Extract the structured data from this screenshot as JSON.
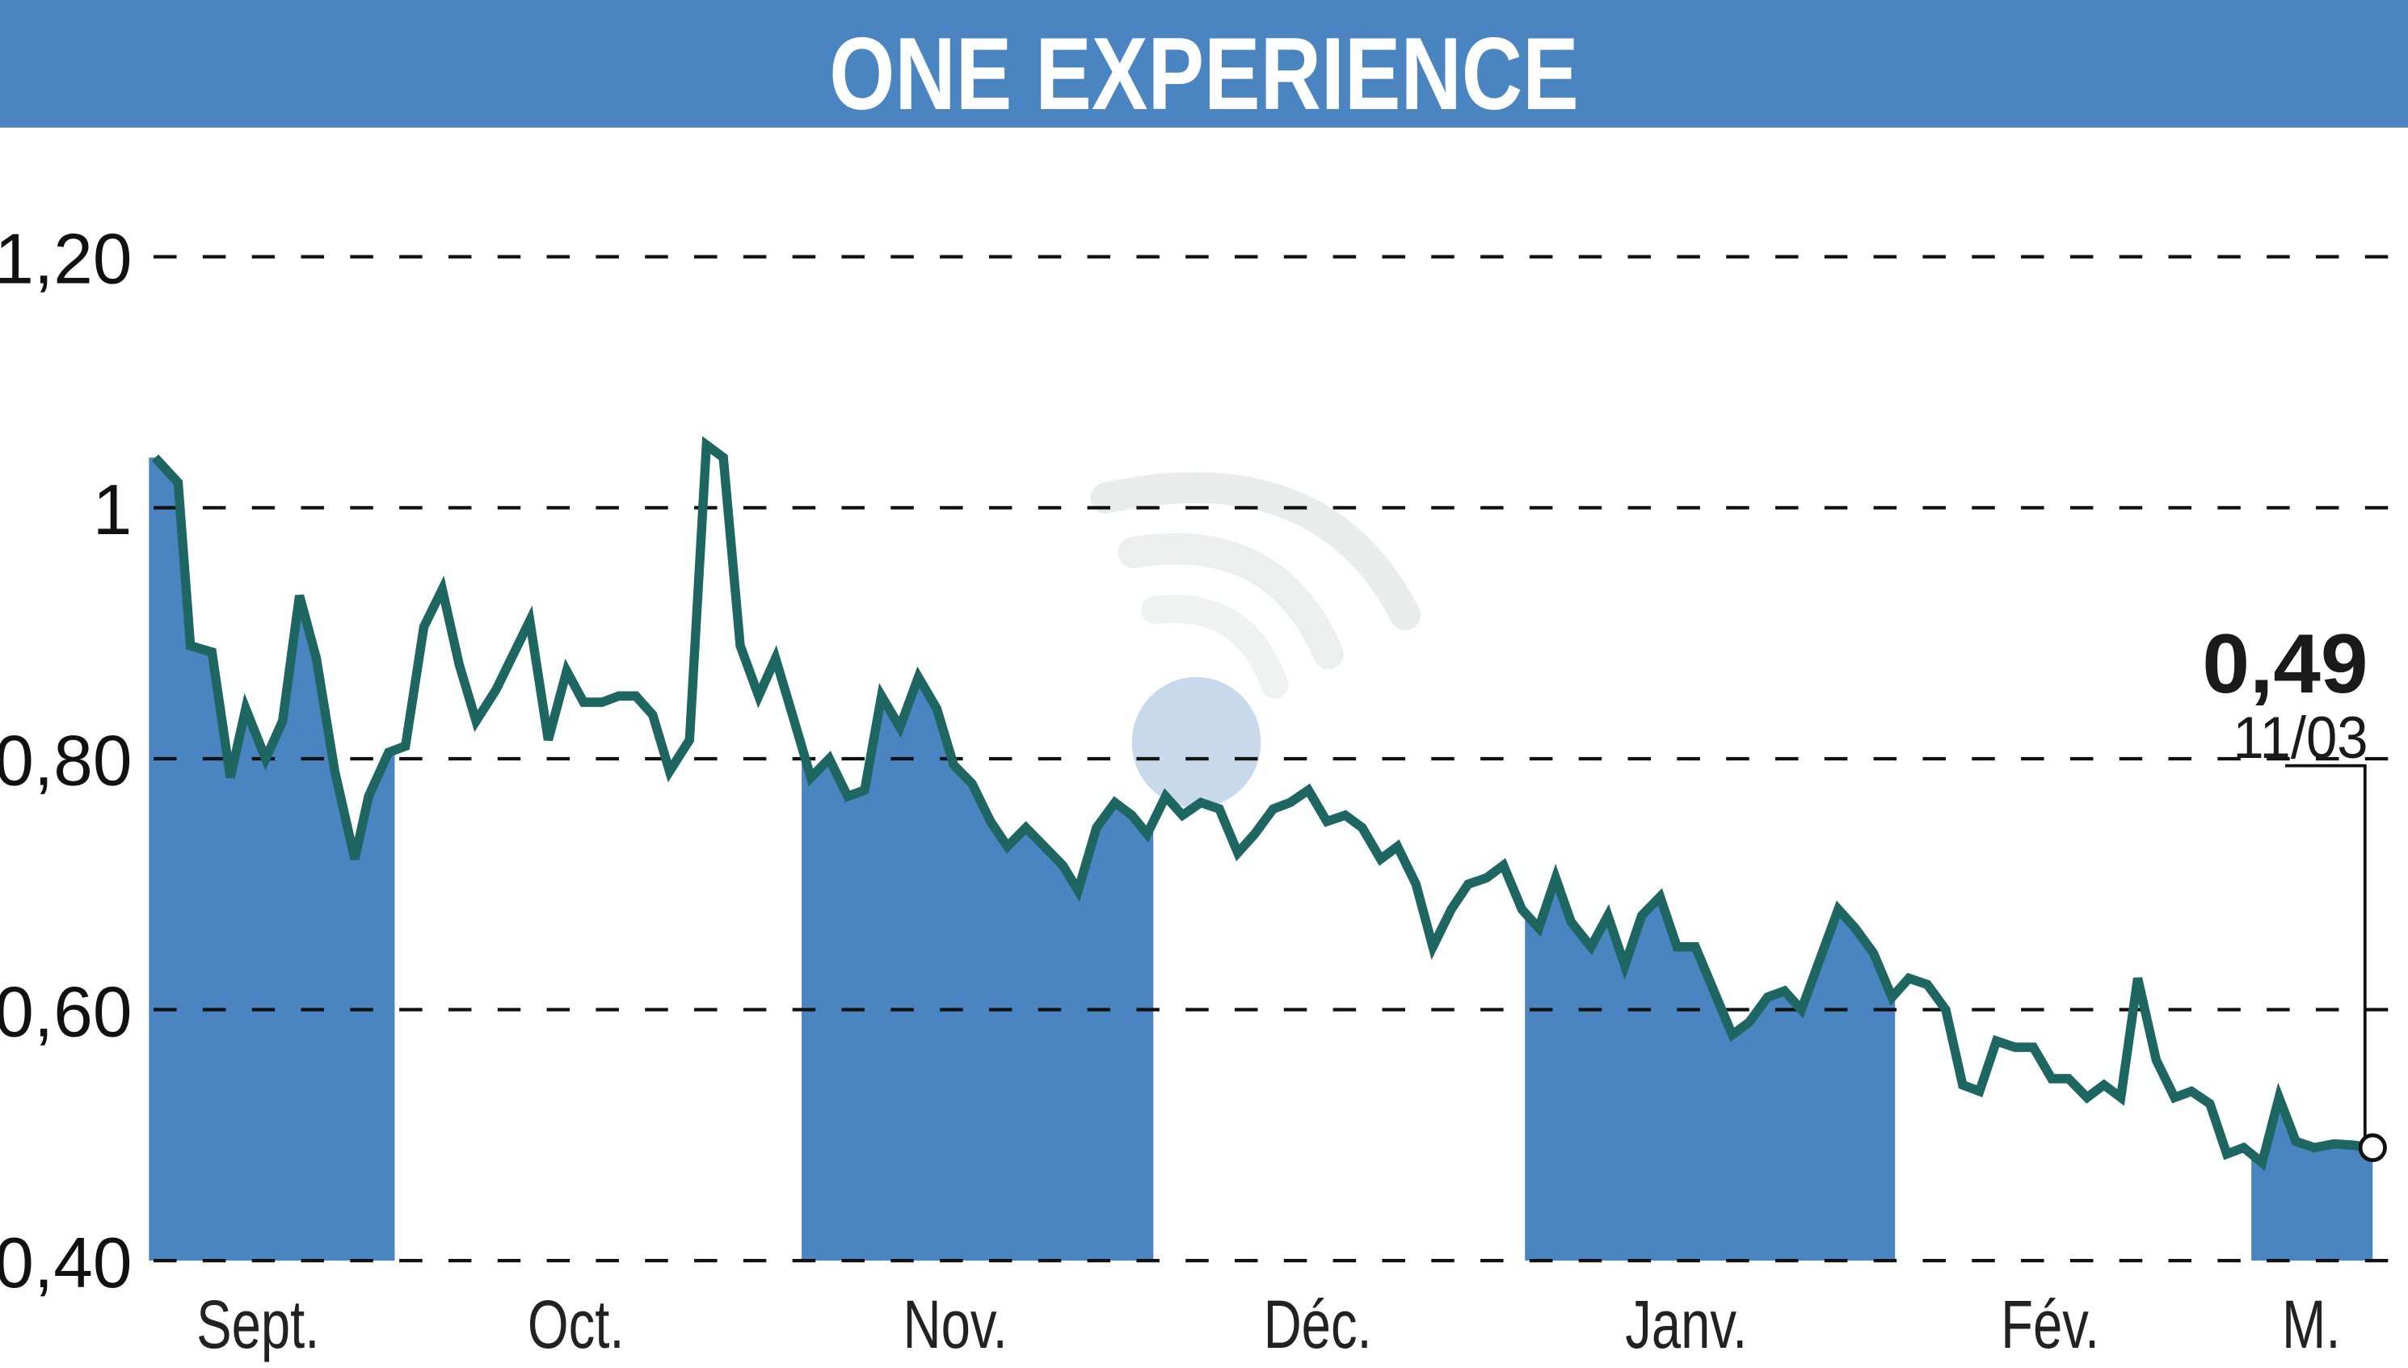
{
  "header": {
    "title": "ONE EXPERIENCE",
    "background_color": "#4a84c1",
    "text_color": "#ffffff"
  },
  "colors": {
    "band_fill": "#4a84c1",
    "line": "#1e6662",
    "grid": "#111111",
    "background": "#ffffff"
  },
  "last_point": {
    "value_label": "0,49",
    "date_label": "11/03"
  },
  "chart_data": {
    "type": "line",
    "title": "ONE EXPERIENCE",
    "xlabel": "",
    "ylabel": "",
    "ylim": [
      0.4,
      1.2
    ],
    "yticks": [
      {
        "value": 1.2,
        "label": "1,20"
      },
      {
        "value": 1.0,
        "label": "1"
      },
      {
        "value": 0.8,
        "label": "0,80"
      },
      {
        "value": 0.6,
        "label": "0,60"
      },
      {
        "value": 0.4,
        "label": "0,40"
      }
    ],
    "grid": "horizontal-dashed",
    "legend": "none",
    "xtick_labels": [
      "Sept.",
      "Oct.",
      "Nov.",
      "Déc.",
      "Janv.",
      "Fév.",
      "M."
    ],
    "shaded_months": [
      "Sept.",
      "Nov.",
      "Janv.",
      "M."
    ],
    "annotation": {
      "value": 0.49,
      "label": "0,49",
      "date": "11/03"
    },
    "series": [
      {
        "name": "ONE EXPERIENCE",
        "points": [
          {
            "x": 101,
            "y": 1.04
          },
          {
            "x": 116,
            "y": 1.02
          },
          {
            "x": 124,
            "y": 0.89
          },
          {
            "x": 138,
            "y": 0.885
          },
          {
            "x": 150,
            "y": 0.785
          },
          {
            "x": 160,
            "y": 0.84
          },
          {
            "x": 173,
            "y": 0.8
          },
          {
            "x": 184,
            "y": 0.83
          },
          {
            "x": 195,
            "y": 0.93
          },
          {
            "x": 206,
            "y": 0.88
          },
          {
            "x": 218,
            "y": 0.79
          },
          {
            "x": 231,
            "y": 0.72
          },
          {
            "x": 240,
            "y": 0.77
          },
          {
            "x": 253,
            "y": 0.805
          },
          {
            "x": 264,
            "y": 0.81
          },
          {
            "x": 276,
            "y": 0.905
          },
          {
            "x": 288,
            "y": 0.935
          },
          {
            "x": 299,
            "y": 0.875
          },
          {
            "x": 310,
            "y": 0.83
          },
          {
            "x": 323,
            "y": 0.855
          },
          {
            "x": 333,
            "y": 0.88
          },
          {
            "x": 345,
            "y": 0.91
          },
          {
            "x": 357,
            "y": 0.815
          },
          {
            "x": 369,
            "y": 0.87
          },
          {
            "x": 380,
            "y": 0.845
          },
          {
            "x": 392,
            "y": 0.845
          },
          {
            "x": 403,
            "y": 0.85
          },
          {
            "x": 414,
            "y": 0.85
          },
          {
            "x": 425,
            "y": 0.835
          },
          {
            "x": 436,
            "y": 0.79
          },
          {
            "x": 449,
            "y": 0.815
          },
          {
            "x": 460,
            "y": 1.05
          },
          {
            "x": 471,
            "y": 1.04
          },
          {
            "x": 482,
            "y": 0.89
          },
          {
            "x": 494,
            "y": 0.85
          },
          {
            "x": 505,
            "y": 0.88
          },
          {
            "x": 516,
            "y": 0.835
          },
          {
            "x": 528,
            "y": 0.785
          },
          {
            "x": 540,
            "y": 0.8
          },
          {
            "x": 552,
            "y": 0.77
          },
          {
            "x": 563,
            "y": 0.775
          },
          {
            "x": 574,
            "y": 0.85
          },
          {
            "x": 586,
            "y": 0.825
          },
          {
            "x": 598,
            "y": 0.865
          },
          {
            "x": 610,
            "y": 0.84
          },
          {
            "x": 621,
            "y": 0.795
          },
          {
            "x": 633,
            "y": 0.78
          },
          {
            "x": 645,
            "y": 0.75
          },
          {
            "x": 656,
            "y": 0.73
          },
          {
            "x": 668,
            "y": 0.745
          },
          {
            "x": 680,
            "y": 0.73
          },
          {
            "x": 692,
            "y": 0.715
          },
          {
            "x": 702,
            "y": 0.695
          },
          {
            "x": 714,
            "y": 0.745
          },
          {
            "x": 726,
            "y": 0.765
          },
          {
            "x": 737,
            "y": 0.755
          },
          {
            "x": 747,
            "y": 0.74
          },
          {
            "x": 759,
            "y": 0.77
          },
          {
            "x": 770,
            "y": 0.755
          },
          {
            "x": 782,
            "y": 0.765
          },
          {
            "x": 794,
            "y": 0.76
          },
          {
            "x": 806,
            "y": 0.725
          },
          {
            "x": 817,
            "y": 0.74
          },
          {
            "x": 829,
            "y": 0.76
          },
          {
            "x": 840,
            "y": 0.765
          },
          {
            "x": 852,
            "y": 0.775
          },
          {
            "x": 864,
            "y": 0.75
          },
          {
            "x": 876,
            "y": 0.755
          },
          {
            "x": 887,
            "y": 0.745
          },
          {
            "x": 899,
            "y": 0.72
          },
          {
            "x": 910,
            "y": 0.73
          },
          {
            "x": 922,
            "y": 0.7
          },
          {
            "x": 933,
            "y": 0.65
          },
          {
            "x": 945,
            "y": 0.68
          },
          {
            "x": 956,
            "y": 0.7
          },
          {
            "x": 968,
            "y": 0.705
          },
          {
            "x": 979,
            "y": 0.715
          },
          {
            "x": 991,
            "y": 0.68
          },
          {
            "x": 1002,
            "y": 0.665
          },
          {
            "x": 1013,
            "y": 0.705
          },
          {
            "x": 1023,
            "y": 0.67
          },
          {
            "x": 1036,
            "y": 0.65
          },
          {
            "x": 1047,
            "y": 0.675
          },
          {
            "x": 1058,
            "y": 0.635
          },
          {
            "x": 1069,
            "y": 0.675
          },
          {
            "x": 1081,
            "y": 0.69
          },
          {
            "x": 1092,
            "y": 0.65
          },
          {
            "x": 1104,
            "y": 0.65
          },
          {
            "x": 1116,
            "y": 0.615
          },
          {
            "x": 1128,
            "y": 0.58
          },
          {
            "x": 1139,
            "y": 0.59
          },
          {
            "x": 1151,
            "y": 0.61
          },
          {
            "x": 1162,
            "y": 0.615
          },
          {
            "x": 1173,
            "y": 0.6
          },
          {
            "x": 1185,
            "y": 0.64
          },
          {
            "x": 1197,
            "y": 0.68
          },
          {
            "x": 1208,
            "y": 0.665
          },
          {
            "x": 1220,
            "y": 0.645
          },
          {
            "x": 1232,
            "y": 0.61
          },
          {
            "x": 1243,
            "y": 0.625
          },
          {
            "x": 1255,
            "y": 0.62
          },
          {
            "x": 1267,
            "y": 0.6
          },
          {
            "x": 1278,
            "y": 0.54
          },
          {
            "x": 1289,
            "y": 0.535
          },
          {
            "x": 1300,
            "y": 0.575
          },
          {
            "x": 1312,
            "y": 0.57
          },
          {
            "x": 1324,
            "y": 0.57
          },
          {
            "x": 1336,
            "y": 0.545
          },
          {
            "x": 1347,
            "y": 0.545
          },
          {
            "x": 1359,
            "y": 0.53
          },
          {
            "x": 1370,
            "y": 0.54
          },
          {
            "x": 1381,
            "y": 0.53
          },
          {
            "x": 1392,
            "y": 0.625
          },
          {
            "x": 1404,
            "y": 0.56
          },
          {
            "x": 1416,
            "y": 0.53
          },
          {
            "x": 1427,
            "y": 0.535
          },
          {
            "x": 1439,
            "y": 0.525
          },
          {
            "x": 1450,
            "y": 0.485
          },
          {
            "x": 1461,
            "y": 0.49
          },
          {
            "x": 1473,
            "y": 0.478
          },
          {
            "x": 1484,
            "y": 0.53
          },
          {
            "x": 1495,
            "y": 0.495
          },
          {
            "x": 1507,
            "y": 0.49
          },
          {
            "x": 1520,
            "y": 0.493
          },
          {
            "x": 1532,
            "y": 0.492
          },
          {
            "x": 1545,
            "y": 0.49
          }
        ]
      }
    ]
  }
}
